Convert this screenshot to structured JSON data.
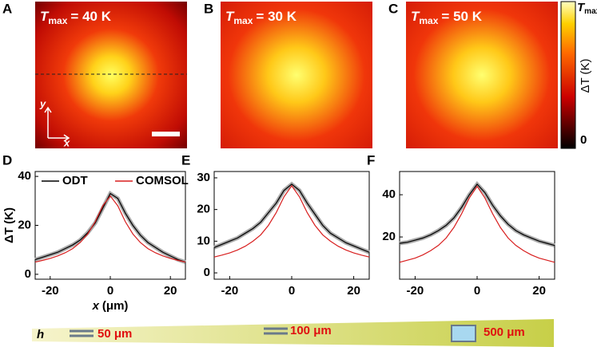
{
  "panels": [
    {
      "letter": "A",
      "title": {
        "symbol": "T",
        "sub": "max",
        "rest": "= 40 K"
      },
      "axes": {
        "y": "y",
        "x": "x"
      }
    },
    {
      "letter": "B",
      "title": {
        "symbol": "T",
        "sub": "max",
        "rest": "= 30 K"
      }
    },
    {
      "letter": "C",
      "title": {
        "symbol": "T",
        "sub": "max",
        "rest": "= 50 K"
      }
    }
  ],
  "colorbar": {
    "top": {
      "symbol": "T",
      "sub": "max"
    },
    "label": "ΔT (K)",
    "bottom": "0"
  },
  "chart_data": [
    {
      "type": "line",
      "label": "D",
      "ylabel": "ΔT (K)",
      "xlabel": {
        "symbol": "x",
        "unit": "(μm)"
      },
      "x": [
        -25,
        -22.5,
        -20,
        -17.5,
        -15,
        -12.5,
        -10,
        -7.5,
        -5,
        -2.5,
        0,
        2.5,
        5,
        7.5,
        10,
        12.5,
        15,
        17.5,
        20,
        22.5,
        25
      ],
      "xlim": [
        -25,
        25
      ],
      "xticks": [
        -20,
        0,
        20
      ],
      "ylim": [
        -2,
        42
      ],
      "yticks": [
        0,
        20,
        40
      ],
      "series": [
        {
          "name": "ODT",
          "color": "#000000",
          "values": [
            6,
            7,
            8,
            9,
            10.5,
            12,
            14,
            17,
            21,
            27,
            33,
            31,
            25,
            20,
            16,
            13,
            11,
            9,
            7.5,
            6,
            5
          ]
        },
        {
          "name": "COMSOL",
          "color": "#d81e1e",
          "values": [
            5,
            5.7,
            6.5,
            7.5,
            8.8,
            10.5,
            13,
            16.5,
            21.5,
            28,
            32,
            28,
            21.5,
            16.5,
            13,
            10.5,
            8.8,
            7.5,
            6.5,
            5.7,
            5
          ]
        }
      ]
    },
    {
      "type": "line",
      "label": "E",
      "x": [
        -25,
        -22.5,
        -20,
        -17.5,
        -15,
        -12.5,
        -10,
        -7.5,
        -5,
        -2.5,
        0,
        2.5,
        5,
        7.5,
        10,
        12.5,
        15,
        17.5,
        20,
        22.5,
        25
      ],
      "xlim": [
        -25,
        25
      ],
      "xticks": [
        -20,
        0,
        20
      ],
      "ylim": [
        -2,
        32
      ],
      "yticks": [
        0,
        10,
        20,
        30
      ],
      "series": [
        {
          "color": "#000000",
          "values": [
            8,
            9,
            10,
            11,
            12.5,
            14,
            16,
            19,
            22,
            26,
            28,
            26,
            22,
            18.5,
            15,
            12.5,
            11,
            9.5,
            8.5,
            7.5,
            6.5
          ]
        },
        {
          "color": "#d81e1e",
          "values": [
            5,
            5.6,
            6.3,
            7.2,
            8.4,
            10,
            12,
            15,
            19,
            24,
            27.5,
            24,
            19,
            15,
            12,
            10,
            8.4,
            7.2,
            6.3,
            5.6,
            5
          ]
        }
      ]
    },
    {
      "type": "line",
      "label": "F",
      "x": [
        -25,
        -22.5,
        -20,
        -17.5,
        -15,
        -12.5,
        -10,
        -7.5,
        -5,
        -2.5,
        0,
        2.5,
        5,
        7.5,
        10,
        12.5,
        15,
        17.5,
        20,
        22.5,
        25
      ],
      "xlim": [
        -25,
        25
      ],
      "xticks": [
        -20,
        0,
        20
      ],
      "ylim": [
        0,
        51
      ],
      "yticks": [
        20,
        40
      ],
      "series": [
        {
          "color": "#000000",
          "values": [
            17,
            17.5,
            18.5,
            19.5,
            21,
            23,
            25.5,
            29,
            34,
            40,
            45,
            41,
            35,
            30,
            26,
            23,
            21,
            19.5,
            18,
            17,
            16
          ]
        },
        {
          "color": "#d81e1e",
          "values": [
            8,
            9,
            10,
            11.5,
            13.5,
            16,
            19.5,
            24.5,
            31,
            38.5,
            44,
            38.5,
            31,
            24.5,
            19.5,
            16,
            13.5,
            11.5,
            10,
            9,
            8
          ]
        }
      ]
    }
  ],
  "wedge": {
    "h": "h",
    "items": [
      "50 μm",
      "100 μm",
      "500 μm"
    ]
  }
}
